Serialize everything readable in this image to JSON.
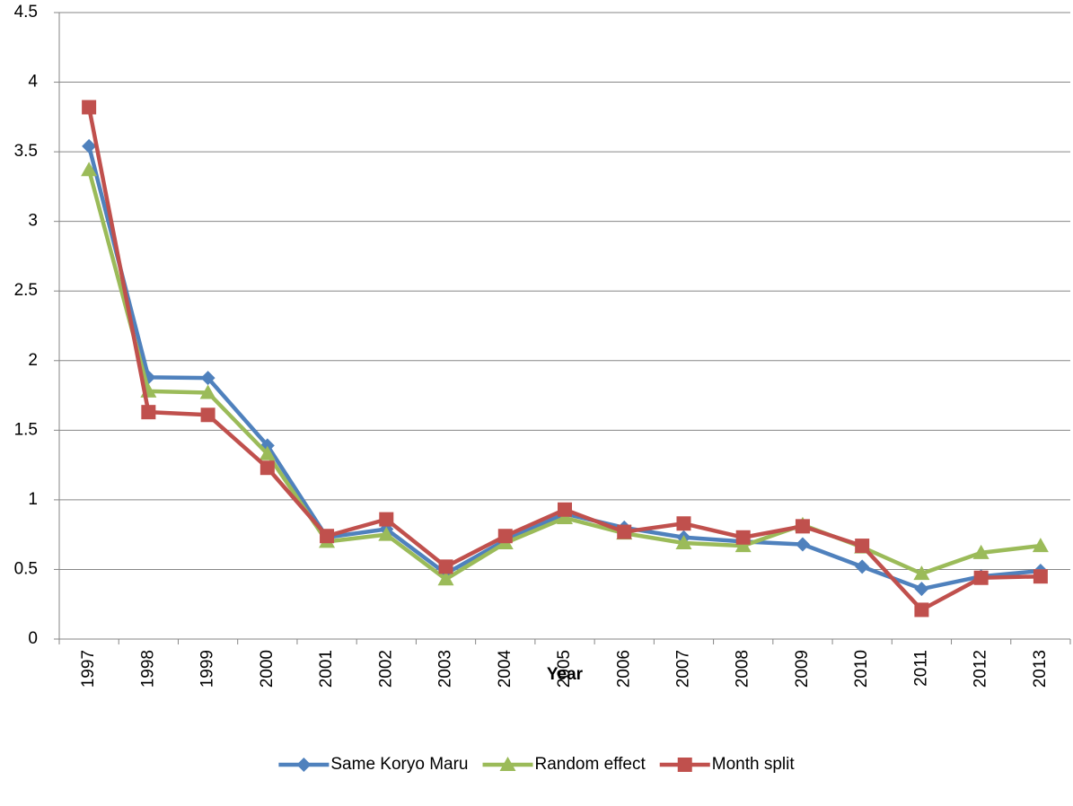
{
  "chart_data": {
    "type": "line",
    "x_label": "Year",
    "categories": [
      "1997",
      "1998",
      "1999",
      "2000",
      "2001",
      "2002",
      "2003",
      "2004",
      "2005",
      "2006",
      "2007",
      "2008",
      "2009",
      "2010",
      "2011",
      "2012",
      "2013"
    ],
    "series": [
      {
        "name": "Same Koryo Maru",
        "color": "#4f81bd",
        "marker": "diamond",
        "values": [
          3.54,
          1.88,
          1.875,
          1.39,
          0.73,
          0.79,
          0.47,
          0.71,
          0.9,
          0.8,
          0.73,
          0.7,
          0.68,
          0.52,
          0.36,
          0.45,
          0.49
        ]
      },
      {
        "name": "Random effect",
        "color": "#9bbb59",
        "marker": "triangle",
        "values": [
          3.37,
          1.78,
          1.77,
          1.33,
          0.7,
          0.75,
          0.43,
          0.69,
          0.87,
          0.76,
          0.69,
          0.67,
          0.82,
          0.66,
          0.47,
          0.62,
          0.67
        ]
      },
      {
        "name": "Month split",
        "color": "#c0504d",
        "marker": "square",
        "values": [
          3.82,
          1.63,
          1.61,
          1.23,
          0.74,
          0.86,
          0.52,
          0.74,
          0.93,
          0.77,
          0.83,
          0.73,
          0.81,
          0.67,
          0.21,
          0.44,
          0.45
        ]
      }
    ],
    "ylim": [
      0,
      4.5
    ],
    "yticks": [
      0,
      0.5,
      1,
      1.5,
      2,
      2.5,
      3,
      3.5,
      4,
      4.5
    ],
    "grid": true,
    "legend": "bottom"
  }
}
